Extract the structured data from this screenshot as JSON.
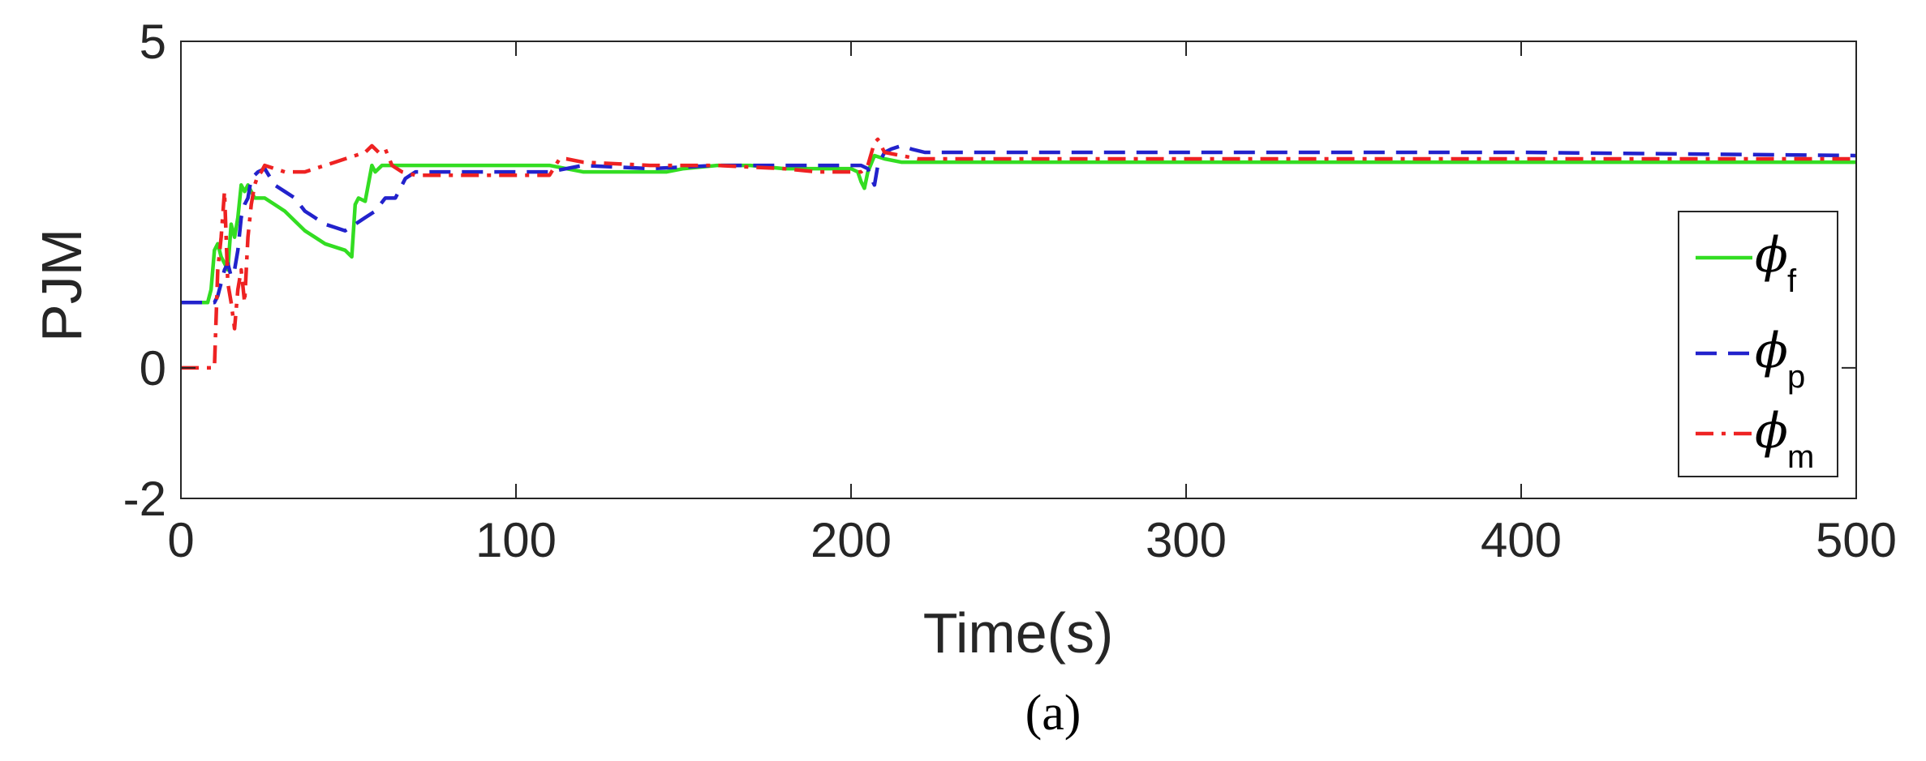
{
  "chart_data": {
    "type": "line",
    "xlabel": "Time(s)",
    "ylabel": "PJM",
    "caption": "(a)",
    "xlim": [
      0,
      500
    ],
    "ylim": [
      -2,
      5
    ],
    "xticks": [
      "0",
      "100",
      "200",
      "300",
      "400",
      "500"
    ],
    "yticks": [
      "-2",
      "0",
      "5"
    ],
    "grid": false,
    "legend_position": "right",
    "series": [
      {
        "name": "ϕ",
        "subscript": "f",
        "color": "#33dd22",
        "dash": "solid",
        "x": [
          0,
          8,
          9,
          10,
          11,
          12,
          13,
          14,
          15,
          16,
          17,
          18,
          19,
          20,
          22,
          25,
          28,
          31,
          34,
          37,
          40,
          43,
          46,
          49,
          51,
          52,
          53,
          55,
          57,
          58,
          60,
          65,
          70,
          80,
          90,
          100,
          110,
          120,
          130,
          140,
          145,
          150,
          160,
          170,
          180,
          190,
          200,
          202,
          203,
          204,
          205,
          207,
          210,
          215,
          220,
          300,
          400,
          500
        ],
        "y": [
          1.0,
          1.0,
          1.2,
          1.8,
          1.9,
          1.7,
          1.6,
          1.5,
          2.2,
          2.0,
          2.3,
          2.8,
          2.7,
          2.8,
          2.6,
          2.6,
          2.5,
          2.4,
          2.25,
          2.1,
          2.0,
          1.9,
          1.85,
          1.8,
          1.7,
          2.5,
          2.6,
          2.55,
          3.1,
          3.0,
          3.1,
          3.1,
          3.1,
          3.1,
          3.1,
          3.1,
          3.1,
          3.0,
          3.0,
          3.0,
          3.0,
          3.05,
          3.1,
          3.1,
          3.05,
          3.05,
          3.05,
          3.0,
          2.85,
          2.75,
          3.0,
          3.25,
          3.2,
          3.15,
          3.15,
          3.15,
          3.15,
          3.15
        ]
      },
      {
        "name": "ϕ",
        "subscript": "p",
        "color": "#2222cc",
        "dash": "dashed",
        "x": [
          0,
          10,
          11,
          12,
          13,
          14,
          15,
          16,
          17,
          18,
          19,
          20,
          21,
          23,
          25,
          28,
          31,
          34,
          37,
          40,
          43,
          46,
          49,
          52,
          55,
          58,
          61,
          64,
          67,
          70,
          80,
          100,
          110,
          120,
          140,
          160,
          180,
          200,
          203,
          205,
          206,
          207,
          208,
          210,
          212,
          215,
          218,
          222,
          300,
          400,
          500
        ],
        "y": [
          1.0,
          1.0,
          1.1,
          1.3,
          1.5,
          1.6,
          1.4,
          1.5,
          1.8,
          2.3,
          2.5,
          2.6,
          2.9,
          3.0,
          3.05,
          2.8,
          2.7,
          2.6,
          2.4,
          2.3,
          2.2,
          2.15,
          2.1,
          2.2,
          2.3,
          2.4,
          2.6,
          2.6,
          2.9,
          3.0,
          3.0,
          3.0,
          3.0,
          3.1,
          3.05,
          3.1,
          3.1,
          3.1,
          3.1,
          3.05,
          2.9,
          2.8,
          3.1,
          3.3,
          3.35,
          3.4,
          3.35,
          3.3,
          3.3,
          3.3,
          3.25
        ]
      },
      {
        "name": "ϕ",
        "subscript": "m",
        "color": "#ee2222",
        "dash": "dashdot",
        "x": [
          0,
          10,
          11,
          12,
          13,
          14,
          15,
          16,
          17,
          18,
          19,
          20,
          21,
          22,
          23,
          24,
          25,
          28,
          31,
          34,
          37,
          40,
          43,
          46,
          49,
          52,
          55,
          57,
          59,
          61,
          63,
          66,
          70,
          80,
          100,
          110,
          113,
          115,
          120,
          140,
          160,
          180,
          190,
          200,
          203,
          205,
          207,
          208,
          210,
          215,
          220,
          300,
          400,
          500
        ],
        "y": [
          0.0,
          0.0,
          1.5,
          2.0,
          2.7,
          1.3,
          1.0,
          0.6,
          1.2,
          1.5,
          1.0,
          2.0,
          2.5,
          2.8,
          2.95,
          3.0,
          3.1,
          3.05,
          3.0,
          3.0,
          3.0,
          3.05,
          3.1,
          3.15,
          3.2,
          3.25,
          3.3,
          3.4,
          3.3,
          3.35,
          3.1,
          3.0,
          2.95,
          2.95,
          2.95,
          2.95,
          3.2,
          3.2,
          3.15,
          3.1,
          3.1,
          3.05,
          3.0,
          3.0,
          3.0,
          3.1,
          3.45,
          3.5,
          3.3,
          3.25,
          3.2,
          3.2,
          3.2,
          3.2
        ]
      }
    ]
  }
}
